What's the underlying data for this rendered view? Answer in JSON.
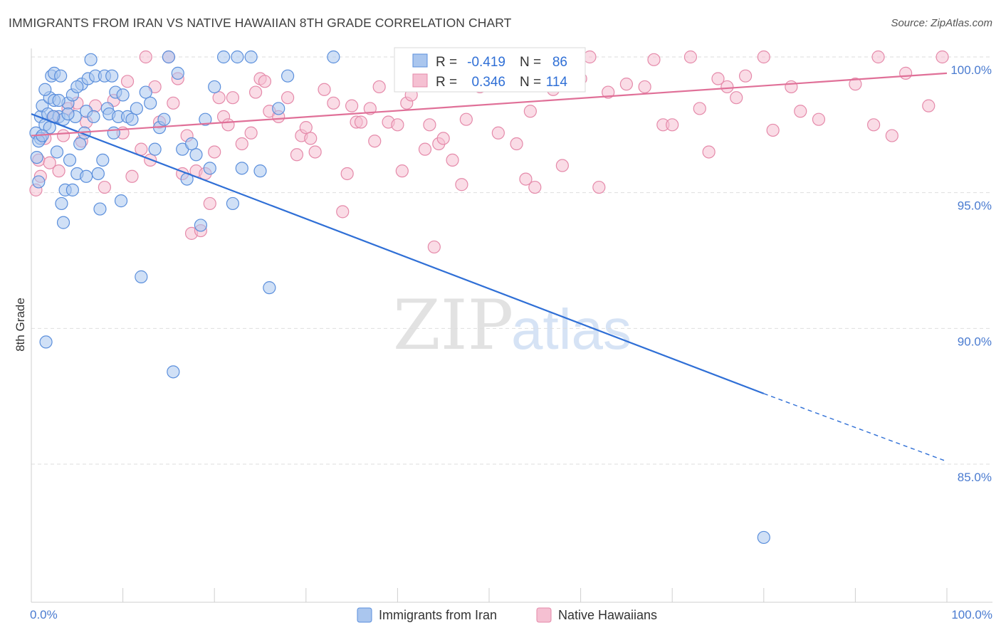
{
  "title": "IMMIGRANTS FROM IRAN VS NATIVE HAWAIIAN 8TH GRADE CORRELATION CHART",
  "source": "Source: ZipAtlas.com",
  "watermark": {
    "zip": "ZIP",
    "atlas": "atlas"
  },
  "colors": {
    "blue_fill": "#aac6ee",
    "blue_stroke": "#5b8fdc",
    "blue_line": "#2f6fd6",
    "pink_fill": "#f5c0d2",
    "pink_stroke": "#e58aaa",
    "pink_line": "#e07098",
    "grid": "#dedede",
    "axis_text": "#4a7bd0"
  },
  "stats_box": {
    "rows": [
      {
        "r_label": "R =",
        "r_value": "-0.419",
        "n_label": "N =",
        "n_value": "86"
      },
      {
        "r_label": "R =",
        "r_value": "0.346",
        "n_label": "N =",
        "n_value": "114"
      }
    ]
  },
  "chart_data": {
    "type": "scatter",
    "title": "IMMIGRANTS FROM IRAN VS NATIVE HAWAIIAN 8TH GRADE CORRELATION CHART",
    "xlabel": "",
    "ylabel": "8th Grade",
    "xlim": [
      0,
      100
    ],
    "ylim": [
      80.5,
      100.5
    ],
    "x_tick_labels": [
      "0.0%",
      "100.0%"
    ],
    "y_ticks": [
      85,
      90,
      95,
      100
    ],
    "y_tick_labels": [
      "85.0%",
      "90.0%",
      "95.0%",
      "100.0%"
    ],
    "grid": true,
    "legend": {
      "position": "bottom",
      "entries": [
        "Immigrants from Iran",
        "Native Hawaiians"
      ]
    },
    "series": [
      {
        "name": "Immigrants from Iran",
        "color": "#5b8fdc",
        "R": -0.419,
        "N": 86,
        "trend": {
          "x0": 0,
          "y0": 97.9,
          "x1": 80,
          "y1": 87.6,
          "dashed_to_x": 100,
          "dashed_to_y": 85.1
        },
        "points": [
          [
            0.5,
            97.2
          ],
          [
            0.6,
            96.3
          ],
          [
            0.8,
            95.4
          ],
          [
            1.0,
            97.8
          ],
          [
            1.2,
            98.2
          ],
          [
            1.5,
            97.5
          ],
          [
            1.8,
            97.9
          ],
          [
            2.0,
            98.5
          ],
          [
            2.2,
            99.3
          ],
          [
            2.5,
            98.4
          ],
          [
            2.8,
            96.5
          ],
          [
            3.0,
            97.8
          ],
          [
            3.3,
            94.6
          ],
          [
            3.5,
            93.9
          ],
          [
            3.7,
            95.1
          ],
          [
            4.0,
            98.3
          ],
          [
            4.2,
            96.2
          ],
          [
            4.5,
            98.6
          ],
          [
            4.8,
            97.8
          ],
          [
            5.0,
            95.7
          ],
          [
            5.3,
            96.8
          ],
          [
            5.5,
            99.0
          ],
          [
            5.8,
            97.2
          ],
          [
            6.0,
            98.0
          ],
          [
            6.2,
            99.2
          ],
          [
            6.5,
            99.9
          ],
          [
            6.8,
            97.8
          ],
          [
            7.0,
            99.3
          ],
          [
            7.3,
            95.7
          ],
          [
            7.5,
            94.4
          ],
          [
            7.8,
            96.2
          ],
          [
            8.0,
            99.3
          ],
          [
            8.3,
            98.1
          ],
          [
            8.5,
            97.9
          ],
          [
            8.8,
            99.3
          ],
          [
            9.0,
            97.2
          ],
          [
            9.2,
            98.7
          ],
          [
            9.5,
            97.8
          ],
          [
            9.8,
            94.7
          ],
          [
            10.0,
            98.6
          ],
          [
            10.5,
            97.8
          ],
          [
            11.0,
            97.7
          ],
          [
            11.5,
            98.1
          ],
          [
            12.0,
            91.9
          ],
          [
            12.5,
            98.7
          ],
          [
            13.0,
            98.3
          ],
          [
            13.5,
            96.6
          ],
          [
            14.0,
            97.4
          ],
          [
            14.5,
            97.7
          ],
          [
            15.0,
            100.0
          ],
          [
            15.5,
            88.4
          ],
          [
            16.0,
            99.4
          ],
          [
            16.5,
            96.6
          ],
          [
            17.0,
            95.5
          ],
          [
            17.5,
            96.8
          ],
          [
            18.0,
            96.4
          ],
          [
            18.5,
            93.8
          ],
          [
            19.0,
            97.7
          ],
          [
            19.5,
            95.9
          ],
          [
            20.0,
            98.9
          ],
          [
            21.0,
            100.0
          ],
          [
            22.0,
            94.6
          ],
          [
            22.5,
            100.0
          ],
          [
            23.0,
            95.9
          ],
          [
            24.0,
            100.0
          ],
          [
            25.0,
            95.8
          ],
          [
            26.0,
            91.5
          ],
          [
            27.0,
            98.1
          ],
          [
            28.0,
            99.3
          ],
          [
            33.0,
            100.0
          ],
          [
            1.0,
            97.0
          ],
          [
            1.5,
            98.8
          ],
          [
            2.0,
            97.4
          ],
          [
            2.5,
            99.4
          ],
          [
            3.0,
            98.4
          ],
          [
            3.5,
            97.7
          ],
          [
            4.0,
            97.9
          ],
          [
            4.5,
            95.1
          ],
          [
            5.0,
            98.9
          ],
          [
            6.0,
            95.6
          ],
          [
            0.8,
            96.9
          ],
          [
            1.2,
            97.1
          ],
          [
            1.6,
            89.5
          ],
          [
            2.4,
            97.8
          ],
          [
            80.0,
            82.3
          ],
          [
            3.2,
            99.3
          ]
        ]
      },
      {
        "name": "Native Hawaiians",
        "color": "#e58aaa",
        "R": 0.346,
        "N": 114,
        "trend": {
          "x0": 0,
          "y0": 97.1,
          "x1": 100,
          "y1": 99.4
        },
        "points": [
          [
            0.5,
            95.1
          ],
          [
            0.8,
            96.2
          ],
          [
            1.0,
            95.6
          ],
          [
            1.5,
            97.0
          ],
          [
            2.0,
            96.1
          ],
          [
            2.5,
            97.8
          ],
          [
            3.0,
            95.8
          ],
          [
            3.5,
            97.1
          ],
          [
            4.0,
            98.1
          ],
          [
            5.0,
            98.3
          ],
          [
            5.5,
            96.9
          ],
          [
            6.0,
            97.6
          ],
          [
            7.0,
            98.2
          ],
          [
            8.0,
            95.2
          ],
          [
            9.0,
            98.4
          ],
          [
            10.0,
            97.2
          ],
          [
            10.5,
            99.1
          ],
          [
            11.0,
            95.6
          ],
          [
            12.0,
            96.6
          ],
          [
            12.5,
            100.0
          ],
          [
            13.0,
            96.2
          ],
          [
            13.5,
            98.9
          ],
          [
            14.0,
            97.6
          ],
          [
            15.0,
            100.0
          ],
          [
            15.5,
            98.3
          ],
          [
            16.0,
            99.2
          ],
          [
            16.5,
            95.7
          ],
          [
            17.0,
            97.1
          ],
          [
            17.5,
            93.5
          ],
          [
            18.0,
            95.8
          ],
          [
            18.5,
            93.6
          ],
          [
            19.0,
            95.7
          ],
          [
            19.5,
            94.6
          ],
          [
            20.0,
            96.5
          ],
          [
            20.5,
            98.5
          ],
          [
            21.0,
            97.8
          ],
          [
            21.5,
            97.5
          ],
          [
            22.0,
            98.5
          ],
          [
            23.0,
            96.8
          ],
          [
            24.0,
            97.2
          ],
          [
            24.5,
            98.7
          ],
          [
            25.0,
            99.2
          ],
          [
            25.5,
            99.1
          ],
          [
            26.0,
            98.0
          ],
          [
            27.0,
            97.8
          ],
          [
            28.0,
            98.5
          ],
          [
            29.0,
            96.4
          ],
          [
            29.5,
            97.1
          ],
          [
            30.0,
            97.4
          ],
          [
            30.5,
            97.0
          ],
          [
            31.0,
            96.5
          ],
          [
            32.0,
            98.8
          ],
          [
            33.0,
            98.3
          ],
          [
            34.0,
            94.3
          ],
          [
            34.5,
            95.7
          ],
          [
            35.0,
            98.2
          ],
          [
            35.5,
            97.6
          ],
          [
            36.0,
            97.6
          ],
          [
            37.0,
            98.1
          ],
          [
            37.5,
            96.9
          ],
          [
            38.0,
            98.9
          ],
          [
            39.0,
            97.6
          ],
          [
            40.0,
            97.5
          ],
          [
            40.5,
            95.8
          ],
          [
            41.0,
            98.3
          ],
          [
            41.5,
            98.6
          ],
          [
            42.0,
            99.0
          ],
          [
            43.0,
            96.6
          ],
          [
            43.5,
            97.5
          ],
          [
            44.0,
            93.0
          ],
          [
            44.5,
            96.8
          ],
          [
            45.0,
            97.0
          ],
          [
            46.0,
            96.2
          ],
          [
            47.0,
            95.3
          ],
          [
            47.5,
            97.7
          ],
          [
            48.0,
            99.2
          ],
          [
            49.0,
            98.9
          ],
          [
            50.0,
            100.0
          ],
          [
            51.0,
            97.2
          ],
          [
            52.0,
            99.0
          ],
          [
            53.0,
            96.8
          ],
          [
            54.0,
            95.5
          ],
          [
            54.5,
            98.0
          ],
          [
            55.0,
            95.2
          ],
          [
            57.0,
            98.8
          ],
          [
            58.0,
            96.0
          ],
          [
            60.0,
            99.2
          ],
          [
            61.0,
            100.0
          ],
          [
            62.0,
            95.2
          ],
          [
            63.0,
            98.7
          ],
          [
            65.0,
            99.0
          ],
          [
            67.0,
            98.9
          ],
          [
            68.0,
            99.9
          ],
          [
            69.0,
            97.5
          ],
          [
            70.0,
            97.5
          ],
          [
            72.0,
            100.0
          ],
          [
            73.0,
            98.1
          ],
          [
            74.0,
            96.5
          ],
          [
            75.0,
            99.2
          ],
          [
            76.0,
            98.9
          ],
          [
            77.0,
            98.5
          ],
          [
            78.0,
            99.3
          ],
          [
            80.0,
            100.0
          ],
          [
            81.0,
            97.3
          ],
          [
            83.0,
            98.9
          ],
          [
            84.0,
            98.0
          ],
          [
            86.0,
            97.7
          ],
          [
            90.0,
            99.0
          ],
          [
            92.0,
            97.5
          ],
          [
            94.0,
            97.1
          ],
          [
            95.5,
            99.4
          ],
          [
            99.5,
            100.0
          ],
          [
            92.5,
            100.0
          ],
          [
            98.0,
            98.2
          ]
        ]
      }
    ]
  }
}
